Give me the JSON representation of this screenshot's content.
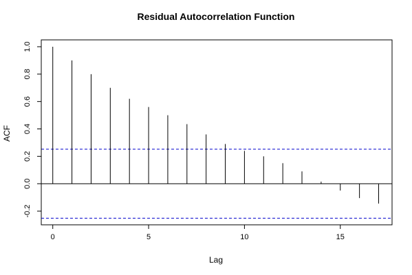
{
  "chart_data": {
    "type": "bar",
    "title": "Residual Autocorrelation Function",
    "xlabel": "Lag",
    "ylabel": "ACF",
    "xlim": [
      -0.6,
      17.7
    ],
    "ylim": [
      -0.3,
      1.05
    ],
    "x_ticks": [
      0,
      5,
      10,
      15
    ],
    "y_ticks": [
      -0.2,
      0.0,
      0.2,
      0.4,
      0.6,
      0.8,
      1.0
    ],
    "lags": [
      0,
      1,
      2,
      3,
      4,
      5,
      6,
      7,
      8,
      9,
      10,
      11,
      12,
      13,
      14,
      15,
      16,
      17
    ],
    "values": [
      1.0,
      0.9,
      0.8,
      0.7,
      0.62,
      0.56,
      0.5,
      0.435,
      0.36,
      0.29,
      0.24,
      0.2,
      0.15,
      0.09,
      0.015,
      -0.05,
      -0.105,
      -0.145
    ],
    "confidence_bounds": [
      0.252,
      -0.252
    ],
    "colors": {
      "bars": "#000000",
      "bounds": "#0000cc",
      "frame": "#000000",
      "zero_line": "#000000"
    }
  }
}
